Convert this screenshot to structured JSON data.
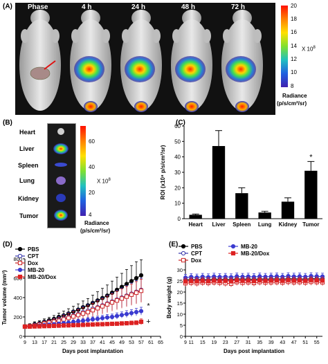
{
  "panelA": {
    "label": "(A)",
    "time_labels": [
      "Phase",
      "4 h",
      "24 h",
      "48 h",
      "72 h"
    ],
    "colorbar_ticks": [
      "20",
      "18",
      "16",
      "14",
      "12",
      "10",
      "8"
    ],
    "colorbar_mult": "X 10",
    "colorbar_exp": "8",
    "colorbar_title": "Radiance",
    "colorbar_unit": "(p/s/cm²/sr)"
  },
  "panelB": {
    "label": "(B)",
    "organs": [
      "Heart",
      "Liver",
      "Spleen",
      "Lung",
      "Kidney",
      "Tumor"
    ],
    "colorbar_ticks": [
      "60",
      "40",
      "20",
      "4"
    ],
    "colorbar_mult": "X 10",
    "colorbar_exp": "8",
    "colorbar_title": "Radiance",
    "colorbar_unit": "(p/s/cm²/sr)"
  },
  "chart_data": [
    {
      "panel": "(C)",
      "type": "bar",
      "categories": [
        "Heart",
        "Liver",
        "Spleen",
        "Lung",
        "Kidney",
        "Tumor"
      ],
      "values": [
        2.5,
        47,
        16.5,
        4,
        11,
        31
      ],
      "errors": [
        0.5,
        10,
        3.5,
        0.8,
        2.5,
        6
      ],
      "ylabel": "ROI (x10⁸ p/s/cm²/sr)",
      "ylim": [
        0,
        60
      ],
      "yticks": [
        0,
        10,
        20,
        30,
        40,
        50,
        60
      ],
      "annotation": "*",
      "color": "#000000"
    },
    {
      "panel": "(D)",
      "type": "line",
      "xlabel": "Days post implantation",
      "ylabel": "Tumor volume (mm³)",
      "xlim": [
        9,
        65
      ],
      "ylim": [
        0,
        800
      ],
      "xticks": [
        9,
        13,
        17,
        21,
        25,
        29,
        33,
        37,
        41,
        45,
        49,
        53,
        57,
        61,
        65
      ],
      "yticks": [
        0,
        200,
        400,
        600,
        800
      ],
      "x": [
        9,
        11,
        13,
        15,
        17,
        19,
        21,
        23,
        25,
        27,
        29,
        31,
        33,
        35,
        37,
        39,
        41,
        43,
        45,
        47,
        49,
        51,
        53,
        55,
        57
      ],
      "series": [
        {
          "name": "PBS",
          "color": "#000000",
          "marker": "filled-circle",
          "values": [
            100,
            110,
            125,
            135,
            150,
            165,
            180,
            200,
            215,
            235,
            255,
            275,
            300,
            320,
            345,
            370,
            395,
            420,
            450,
            480,
            510,
            540,
            570,
            600,
            630
          ],
          "errors": [
            20,
            20,
            25,
            25,
            30,
            30,
            35,
            40,
            45,
            50,
            55,
            60,
            65,
            70,
            80,
            90,
            100,
            110,
            120,
            130,
            140,
            150,
            160,
            170,
            160
          ]
        },
        {
          "name": "CPT",
          "color": "#3333aa",
          "marker": "open-circle",
          "values": [
            100,
            105,
            115,
            125,
            135,
            145,
            155,
            170,
            185,
            200,
            215,
            230,
            250,
            265,
            285,
            300,
            320,
            340,
            360,
            380,
            400,
            420,
            440,
            460,
            480
          ],
          "errors": [
            15,
            15,
            20,
            20,
            25,
            25,
            30,
            35,
            40,
            45,
            50,
            55,
            60,
            65,
            70,
            75,
            80,
            85,
            90,
            95,
            100,
            105,
            110,
            115,
            120
          ]
        },
        {
          "name": "Dox",
          "color": "#cc2222",
          "marker": "open-square",
          "values": [
            100,
            105,
            110,
            120,
            130,
            140,
            150,
            160,
            175,
            190,
            205,
            220,
            235,
            250,
            270,
            290,
            310,
            330,
            350,
            370,
            390,
            410,
            430,
            450,
            470
          ],
          "errors": [
            15,
            15,
            20,
            20,
            25,
            25,
            30,
            35,
            40,
            45,
            50,
            55,
            60,
            65,
            70,
            75,
            80,
            85,
            90,
            95,
            100,
            105,
            110,
            115,
            120
          ]
        },
        {
          "name": "MB-20",
          "color": "#3b3bd0",
          "marker": "filled-circle",
          "values": [
            100,
            102,
            105,
            110,
            115,
            120,
            125,
            130,
            135,
            140,
            148,
            155,
            160,
            168,
            175,
            180,
            188,
            195,
            200,
            210,
            220,
            230,
            240,
            250,
            260
          ],
          "errors": [
            10,
            10,
            12,
            12,
            15,
            15,
            15,
            18,
            18,
            20,
            20,
            22,
            22,
            25,
            25,
            28,
            28,
            30,
            30,
            32,
            32,
            35,
            35,
            38,
            40
          ]
        },
        {
          "name": "MB-20/Dox",
          "color": "#dd2222",
          "marker": "filled-square",
          "values": [
            100,
            100,
            102,
            103,
            105,
            106,
            108,
            110,
            112,
            113,
            115,
            116,
            118,
            120,
            122,
            124,
            125,
            127,
            129,
            130,
            133,
            135,
            138,
            140,
            150
          ],
          "errors": [
            8,
            8,
            10,
            10,
            10,
            10,
            12,
            12,
            12,
            12,
            14,
            14,
            14,
            15,
            15,
            15,
            16,
            16,
            16,
            18,
            18,
            18,
            20,
            20,
            30
          ]
        }
      ],
      "annotations": [
        "*",
        "+"
      ],
      "legend": "top-left"
    },
    {
      "panel": "(E)",
      "type": "line",
      "xlabel": "Days post implantation",
      "ylabel": "Body weight (g)",
      "xlim": [
        9,
        57
      ],
      "ylim": [
        0,
        35
      ],
      "xticks": [
        9,
        11,
        15,
        19,
        23,
        27,
        31,
        35,
        39,
        43,
        47,
        51,
        55
      ],
      "yticks": [
        0,
        5,
        10,
        15,
        20,
        25,
        30
      ],
      "x": [
        9,
        11,
        13,
        15,
        17,
        19,
        21,
        23,
        25,
        27,
        29,
        31,
        33,
        35,
        37,
        39,
        41,
        43,
        45,
        47,
        49,
        51,
        53,
        55,
        57
      ],
      "series": [
        {
          "name": "PBS",
          "color": "#000000",
          "marker": "filled-circle",
          "values": [
            25.5,
            25.7,
            25.6,
            25.8,
            25.5,
            25.9,
            25.7,
            25.8,
            25.6,
            26.0,
            25.8,
            25.9,
            25.7,
            26.0,
            25.8,
            25.9,
            26.0,
            25.8,
            26.1,
            25.9,
            26.0,
            25.8,
            26.1,
            26.0,
            25.9
          ],
          "errors": [
            1.5,
            1.5,
            1.5,
            1.5,
            1.5,
            1.5,
            1.5,
            1.5,
            1.5,
            1.5,
            1.5,
            1.5,
            1.5,
            1.5,
            1.5,
            1.5,
            1.5,
            1.5,
            1.5,
            1.5,
            1.5,
            1.5,
            1.5,
            1.5,
            1.5
          ]
        },
        {
          "name": "CPT",
          "color": "#3333aa",
          "marker": "open-circle",
          "values": [
            25.0,
            25.2,
            25.1,
            25.3,
            25.0,
            25.4,
            25.2,
            25.3,
            25.1,
            25.5,
            25.3,
            25.4,
            25.2,
            25.5,
            25.3,
            25.4,
            25.5,
            25.3,
            25.6,
            25.4,
            25.5,
            25.3,
            25.6,
            25.5,
            25.4
          ],
          "errors": [
            1.5,
            1.5,
            1.5,
            1.5,
            1.5,
            1.5,
            1.5,
            1.5,
            1.5,
            1.5,
            1.5,
            1.5,
            1.5,
            1.5,
            1.5,
            1.5,
            1.5,
            1.5,
            1.5,
            1.5,
            1.5,
            1.5,
            1.5,
            1.5,
            1.5
          ]
        },
        {
          "name": "Dox",
          "color": "#cc2222",
          "marker": "open-square",
          "values": [
            24.0,
            24.2,
            24.0,
            24.3,
            24.1,
            24.4,
            24.2,
            24.0,
            23.8,
            24.5,
            24.2,
            24.4,
            24.1,
            24.5,
            24.3,
            24.4,
            24.5,
            24.3,
            24.6,
            24.4,
            24.5,
            24.3,
            24.6,
            24.5,
            24.4
          ],
          "errors": [
            1.5,
            1.5,
            1.5,
            1.5,
            1.5,
            1.5,
            1.5,
            1.5,
            1.5,
            1.5,
            1.5,
            1.5,
            1.5,
            1.5,
            1.5,
            1.5,
            1.5,
            1.5,
            1.5,
            1.5,
            1.5,
            1.5,
            1.5,
            1.5,
            1.5
          ]
        },
        {
          "name": "MB-20",
          "color": "#3b3bd0",
          "marker": "filled-circle",
          "values": [
            26.5,
            26.8,
            26.6,
            26.9,
            26.7,
            27.0,
            26.8,
            26.9,
            26.7,
            27.1,
            26.9,
            27.0,
            26.8,
            27.1,
            26.9,
            27.0,
            27.1,
            26.9,
            27.2,
            27.0,
            27.1,
            26.9,
            27.2,
            27.1,
            27.0
          ],
          "errors": [
            1.5,
            1.5,
            1.5,
            1.5,
            1.5,
            1.5,
            1.5,
            1.5,
            1.5,
            1.5,
            1.5,
            1.5,
            1.5,
            1.5,
            1.5,
            1.5,
            1.5,
            1.5,
            1.5,
            1.5,
            1.5,
            1.5,
            1.5,
            1.5,
            1.5
          ]
        },
        {
          "name": "MB-20/Dox",
          "color": "#dd2222",
          "marker": "filled-square",
          "values": [
            24.8,
            25.0,
            24.9,
            25.1,
            24.9,
            25.2,
            25.0,
            25.1,
            24.9,
            25.3,
            25.1,
            25.2,
            25.0,
            25.3,
            25.1,
            25.2,
            25.3,
            25.1,
            25.4,
            25.2,
            25.3,
            25.1,
            25.4,
            25.3,
            25.2
          ],
          "errors": [
            1.5,
            1.5,
            1.5,
            1.5,
            1.5,
            1.5,
            1.5,
            1.5,
            1.5,
            1.5,
            1.5,
            1.5,
            1.5,
            1.5,
            1.5,
            1.5,
            1.5,
            1.5,
            1.5,
            1.5,
            1.5,
            1.5,
            1.5,
            1.5,
            1.5
          ]
        }
      ],
      "legend": "top"
    }
  ]
}
